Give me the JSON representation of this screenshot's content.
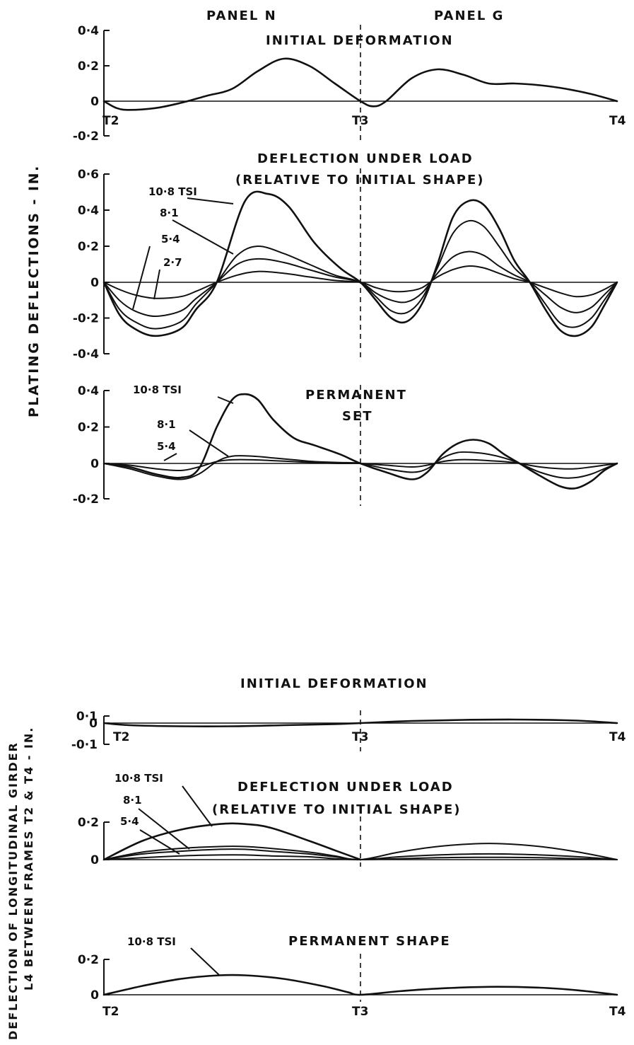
{
  "figure": {
    "panel_labels": [
      "PANEL N",
      "PANEL G"
    ],
    "plating_ylabel": "PLATING DEFLECTIONS - IN.",
    "girder_ylabel": [
      "DEFLECTION OF LONGITUDINAL GIRDER",
      "L4 BETWEEN FRAMES T2 & T4 - IN."
    ]
  },
  "chart_data": [
    {
      "id": "plating-initial",
      "type": "line",
      "title": "INITIAL DEFORMATION",
      "x_categories": [
        "T2",
        "T3",
        "T4"
      ],
      "xlim": [
        0,
        2
      ],
      "ylim": [
        -0.2,
        0.4
      ],
      "yticks": [
        "0·4",
        "0·2",
        "0",
        "-0·2"
      ],
      "ytick_values": [
        0.4,
        0.2,
        0,
        -0.2
      ],
      "series": [
        {
          "x": [
            0,
            0.05,
            0.1,
            0.2,
            0.3,
            0.4,
            0.5,
            0.6,
            0.7,
            0.8,
            0.9,
            1.0,
            1.05,
            1.1,
            1.2,
            1.3,
            1.4,
            1.5,
            1.6,
            1.7,
            1.8,
            1.9,
            2.0
          ],
          "y": [
            0,
            -0.04,
            -0.05,
            -0.04,
            -0.01,
            0.03,
            0.07,
            0.17,
            0.24,
            0.2,
            0.1,
            0.0,
            -0.03,
            0.0,
            0.13,
            0.18,
            0.15,
            0.1,
            0.1,
            0.09,
            0.07,
            0.04,
            0.0
          ]
        }
      ]
    },
    {
      "id": "plating-under-load",
      "type": "line",
      "title": "DEFLECTION UNDER LOAD",
      "subtitle": "(RELATIVE TO INITIAL SHAPE)",
      "x_categories": [
        "T2",
        "T3",
        "T4"
      ],
      "xlim": [
        0,
        2
      ],
      "ylim": [
        -0.4,
        0.6
      ],
      "yticks": [
        "0·6",
        "0·4",
        "0·2",
        "0",
        "-0·2",
        "-0·4"
      ],
      "ytick_values": [
        0.6,
        0.4,
        0.2,
        0,
        -0.2,
        -0.4
      ],
      "series": [
        {
          "name": "10·8 TSI",
          "x": [
            0,
            0.06,
            0.12,
            0.2,
            0.3,
            0.36,
            0.44,
            0.55,
            0.64,
            0.72,
            0.82,
            0.92,
            1.0,
            1.06,
            1.12,
            1.18,
            1.24,
            1.3,
            1.36,
            1.42,
            1.48,
            1.54,
            1.6,
            1.66,
            1.72,
            1.78,
            1.84,
            1.9,
            1.95,
            2.0
          ],
          "y": [
            0,
            -0.18,
            -0.26,
            -0.3,
            -0.26,
            -0.15,
            0.0,
            0.45,
            0.49,
            0.42,
            0.22,
            0.08,
            0.0,
            -0.1,
            -0.2,
            -0.22,
            -0.12,
            0.1,
            0.36,
            0.45,
            0.43,
            0.3,
            0.12,
            0.0,
            -0.15,
            -0.27,
            -0.3,
            -0.25,
            -0.13,
            0.0
          ]
        },
        {
          "name": "8·1",
          "x": [
            0,
            0.06,
            0.12,
            0.2,
            0.3,
            0.36,
            0.44,
            0.52,
            0.6,
            0.7,
            0.8,
            0.9,
            1.0,
            1.06,
            1.12,
            1.18,
            1.24,
            1.3,
            1.36,
            1.42,
            1.48,
            1.54,
            1.6,
            1.66,
            1.72,
            1.78,
            1.84,
            1.9,
            1.95,
            2.0
          ],
          "y": [
            0,
            -0.15,
            -0.22,
            -0.26,
            -0.22,
            -0.12,
            0.0,
            0.15,
            0.2,
            0.16,
            0.1,
            0.04,
            0.0,
            -0.08,
            -0.16,
            -0.17,
            -0.09,
            0.08,
            0.27,
            0.34,
            0.31,
            0.2,
            0.08,
            0.0,
            -0.12,
            -0.23,
            -0.25,
            -0.2,
            -0.1,
            0.0
          ]
        },
        {
          "name": "5·4",
          "x": [
            0,
            0.06,
            0.12,
            0.2,
            0.3,
            0.36,
            0.44,
            0.52,
            0.6,
            0.7,
            0.8,
            0.9,
            1.0,
            1.06,
            1.12,
            1.18,
            1.24,
            1.3,
            1.36,
            1.42,
            1.48,
            1.54,
            1.6,
            1.66,
            1.72,
            1.78,
            1.84,
            1.9,
            1.95,
            2.0
          ],
          "y": [
            0,
            -0.1,
            -0.16,
            -0.19,
            -0.16,
            -0.09,
            0.0,
            0.1,
            0.13,
            0.11,
            0.07,
            0.03,
            0.0,
            -0.06,
            -0.1,
            -0.11,
            -0.06,
            0.05,
            0.14,
            0.17,
            0.15,
            0.09,
            0.04,
            0.0,
            -0.07,
            -0.14,
            -0.17,
            -0.14,
            -0.07,
            0.0
          ]
        },
        {
          "name": "2·7",
          "x": [
            0,
            0.06,
            0.12,
            0.2,
            0.3,
            0.36,
            0.44,
            0.52,
            0.6,
            0.7,
            0.8,
            0.9,
            1.0,
            1.06,
            1.12,
            1.18,
            1.24,
            1.3,
            1.36,
            1.42,
            1.48,
            1.54,
            1.6,
            1.66,
            1.72,
            1.78,
            1.84,
            1.9,
            1.95,
            2.0
          ],
          "y": [
            0,
            -0.04,
            -0.07,
            -0.09,
            -0.08,
            -0.05,
            0.0,
            0.04,
            0.06,
            0.05,
            0.03,
            0.01,
            0.0,
            -0.03,
            -0.05,
            -0.05,
            -0.03,
            0.03,
            0.07,
            0.09,
            0.08,
            0.05,
            0.02,
            0.0,
            -0.03,
            -0.06,
            -0.08,
            -0.07,
            -0.04,
            0.0
          ]
        }
      ]
    },
    {
      "id": "plating-permanent",
      "type": "line",
      "title": "PERMANENT",
      "subtitle": "SET",
      "x_categories": [
        "T2",
        "T3",
        "T4"
      ],
      "xlim": [
        0,
        2
      ],
      "ylim": [
        -0.2,
        0.4
      ],
      "yticks": [
        "0·4",
        "0·2",
        "0",
        "-0·2"
      ],
      "ytick_values": [
        0.4,
        0.2,
        0,
        -0.2
      ],
      "series": [
        {
          "name": "10·8 TSI",
          "x": [
            0,
            0.1,
            0.2,
            0.3,
            0.37,
            0.44,
            0.5,
            0.55,
            0.6,
            0.66,
            0.74,
            0.82,
            0.92,
            1.0,
            1.1,
            1.2,
            1.26,
            1.32,
            1.38,
            1.44,
            1.5,
            1.56,
            1.62,
            1.7,
            1.78,
            1.84,
            1.9,
            1.95,
            2.0
          ],
          "y": [
            0,
            -0.02,
            -0.06,
            -0.08,
            -0.03,
            0.2,
            0.35,
            0.38,
            0.35,
            0.24,
            0.14,
            0.1,
            0.05,
            0.0,
            -0.05,
            -0.09,
            -0.05,
            0.05,
            0.11,
            0.13,
            0.11,
            0.05,
            0.0,
            -0.07,
            -0.13,
            -0.14,
            -0.1,
            -0.04,
            0.0
          ]
        },
        {
          "name": "8·1",
          "x": [
            0,
            0.1,
            0.2,
            0.3,
            0.37,
            0.44,
            0.5,
            0.58,
            0.66,
            0.74,
            0.82,
            0.92,
            1.0,
            1.1,
            1.2,
            1.26,
            1.32,
            1.38,
            1.44,
            1.5,
            1.56,
            1.62,
            1.7,
            1.78,
            1.84,
            1.9,
            1.95,
            2.0
          ],
          "y": [
            0,
            -0.03,
            -0.07,
            -0.09,
            -0.06,
            0.01,
            0.04,
            0.04,
            0.03,
            0.02,
            0.01,
            0.005,
            0.0,
            -0.03,
            -0.05,
            -0.03,
            0.03,
            0.06,
            0.06,
            0.05,
            0.03,
            0.0,
            -0.05,
            -0.08,
            -0.08,
            -0.06,
            -0.03,
            0.0
          ]
        },
        {
          "name": "5·4",
          "x": [
            0,
            0.1,
            0.2,
            0.3,
            0.37,
            0.44,
            0.5,
            0.58,
            0.66,
            0.74,
            0.82,
            0.92,
            1.0,
            1.1,
            1.2,
            1.26,
            1.32,
            1.38,
            1.44,
            1.5,
            1.56,
            1.62,
            1.7,
            1.78,
            1.84,
            1.9,
            1.95,
            2.0
          ],
          "y": [
            0,
            -0.01,
            -0.03,
            -0.04,
            -0.02,
            0.01,
            0.02,
            0.02,
            0.015,
            0.01,
            0.005,
            0.0,
            0.0,
            -0.01,
            -0.02,
            -0.01,
            0.01,
            0.02,
            0.02,
            0.015,
            0.01,
            0.0,
            -0.02,
            -0.03,
            -0.03,
            -0.02,
            -0.01,
            0.0
          ]
        }
      ]
    },
    {
      "id": "girder-initial",
      "type": "line",
      "title": "INITIAL DEFORMATION",
      "x_categories": [
        "T2",
        "T3",
        "T4"
      ],
      "xlim": [
        0,
        2
      ],
      "ylim": [
        -0.1,
        0.1
      ],
      "yticks": [
        "0·1",
        "0",
        "-0·1"
      ],
      "ytick_values": [
        0.1,
        0,
        -0.1
      ],
      "series": [
        {
          "x": [
            0,
            0.1,
            0.3,
            0.5,
            0.7,
            0.9,
            1.0,
            1.2,
            1.4,
            1.6,
            1.8,
            1.9,
            2.0
          ],
          "y": [
            0,
            -0.01,
            -0.015,
            -0.015,
            -0.01,
            -0.005,
            0.0,
            0.03,
            0.045,
            0.05,
            0.04,
            0.025,
            0.0
          ]
        }
      ]
    },
    {
      "id": "girder-under-load",
      "type": "line",
      "title": "DEFLECTION UNDER LOAD",
      "subtitle": "(RELATIVE TO INITIAL SHAPE)",
      "x_categories": [
        "T2",
        "T3",
        "T4"
      ],
      "xlim": [
        0,
        2
      ],
      "ylim": [
        0,
        0.2
      ],
      "yticks": [
        "0·2",
        "0"
      ],
      "ytick_values": [
        0.2,
        0
      ],
      "series": [
        {
          "name": "10·8 TSI",
          "x": [
            0,
            0.15,
            0.3,
            0.45,
            0.55,
            0.65,
            0.8,
            0.9,
            1.0
          ],
          "y": [
            0,
            0.1,
            0.16,
            0.19,
            0.19,
            0.17,
            0.1,
            0.05,
            0.0
          ]
        },
        {
          "name": "8·1",
          "x": [
            0,
            0.15,
            0.3,
            0.45,
            0.55,
            0.65,
            0.8,
            0.9,
            1.0,
            1.15,
            1.3,
            1.45,
            1.55,
            1.7,
            1.85,
            2.0
          ],
          "y": [
            0,
            0.04,
            0.06,
            0.07,
            0.07,
            0.06,
            0.04,
            0.02,
            0.0,
            0.04,
            0.07,
            0.085,
            0.085,
            0.07,
            0.04,
            0.0
          ]
        },
        {
          "name": "5·4",
          "x": [
            0,
            0.15,
            0.3,
            0.45,
            0.55,
            0.65,
            0.8,
            0.9,
            1.0,
            1.15,
            1.3,
            1.45,
            1.55,
            1.7,
            1.85,
            2.0
          ],
          "y": [
            0,
            0.03,
            0.045,
            0.055,
            0.055,
            0.045,
            0.03,
            0.015,
            0.0,
            0.015,
            0.025,
            0.03,
            0.03,
            0.025,
            0.015,
            0.0
          ]
        },
        {
          "name": "",
          "x": [
            0,
            0.15,
            0.3,
            0.45,
            0.55,
            0.65,
            0.8,
            0.9,
            1.0,
            1.15,
            1.3,
            1.45,
            1.55,
            1.7,
            1.85,
            2.0
          ],
          "y": [
            0,
            0.01,
            0.02,
            0.025,
            0.025,
            0.02,
            0.015,
            0.005,
            0.0,
            0.005,
            0.01,
            0.012,
            0.012,
            0.01,
            0.005,
            0.0
          ]
        }
      ]
    },
    {
      "id": "girder-permanent",
      "type": "line",
      "title": "PERMANENT SHAPE",
      "x_categories": [
        "T2",
        "T3",
        "T4"
      ],
      "xlim": [
        0,
        2
      ],
      "ylim": [
        0,
        0.2
      ],
      "yticks": [
        "0·2",
        "0"
      ],
      "ytick_values": [
        0.2,
        0
      ],
      "series": [
        {
          "name": "10·8 TSI",
          "x": [
            0,
            0.15,
            0.3,
            0.45,
            0.55,
            0.7,
            0.85,
            0.95,
            1.0,
            1.15,
            1.3,
            1.5,
            1.7,
            1.85,
            2.0
          ],
          "y": [
            0,
            0.05,
            0.09,
            0.11,
            0.11,
            0.09,
            0.05,
            0.015,
            0.0,
            0.02,
            0.035,
            0.045,
            0.04,
            0.025,
            0.0
          ]
        }
      ]
    }
  ]
}
